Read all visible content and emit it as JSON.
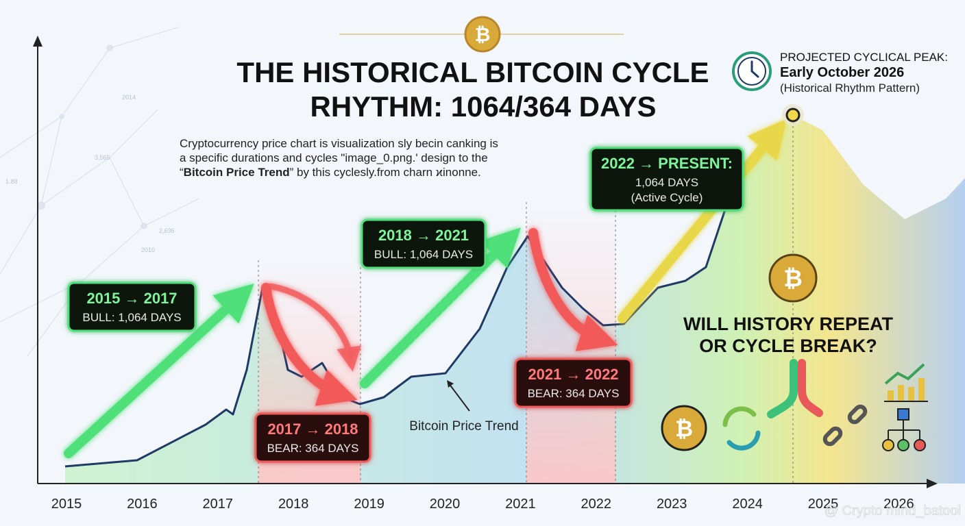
{
  "title": {
    "line1": "THE HISTORICAL BITCOIN CYCLE",
    "line2": "RHYTHM: 1064/364 DAYS"
  },
  "description": {
    "line1": "Cryptocurrency price chart is visualization sly becin canking is",
    "line2": "a specific durations and cycles \"image_0.png.' design to the",
    "line3_open": "“",
    "line3_bold": "Bitcoin Price Trend",
    "line3_rest": "” by this cyclesly.from charn ϰinonne."
  },
  "projection": {
    "label": "PROJECTED CYCLICAL PEAK:",
    "date": "Early October 2026",
    "note": "(Historical Rhythm Pattern)"
  },
  "phases": [
    {
      "range": "2015 → 2017",
      "detail": "BULL: 1,064 DAYS"
    },
    {
      "range": "2017 → 2018",
      "detail": "BEAR: 364 DAYS"
    },
    {
      "range": "2018 → 2021",
      "detail": "BULL: 1,064 DAYS"
    },
    {
      "range": "2021 → 2022",
      "detail": "BEAR: 364 DAYS"
    },
    {
      "range": "2022 → PRESENT:",
      "detail": "1,064 DAYS",
      "note": "(Active Cycle)"
    }
  ],
  "trend_label": "Bitcoin Price Trend",
  "question": {
    "line1": "WILL HISTORY REPEAT",
    "line2": "OR CYCLE BREAK?"
  },
  "x_axis": [
    "2015",
    "2016",
    "2017",
    "2018",
    "2019",
    "2020",
    "2021",
    "2022",
    "2023",
    "2024",
    "2025",
    "2026"
  ],
  "background_labels": [
    "2014",
    "3,565",
    "1.88",
    "2,636",
    "2010"
  ],
  "coin_symbol": "₿",
  "watermark": "@ Crypto mind_batool"
}
